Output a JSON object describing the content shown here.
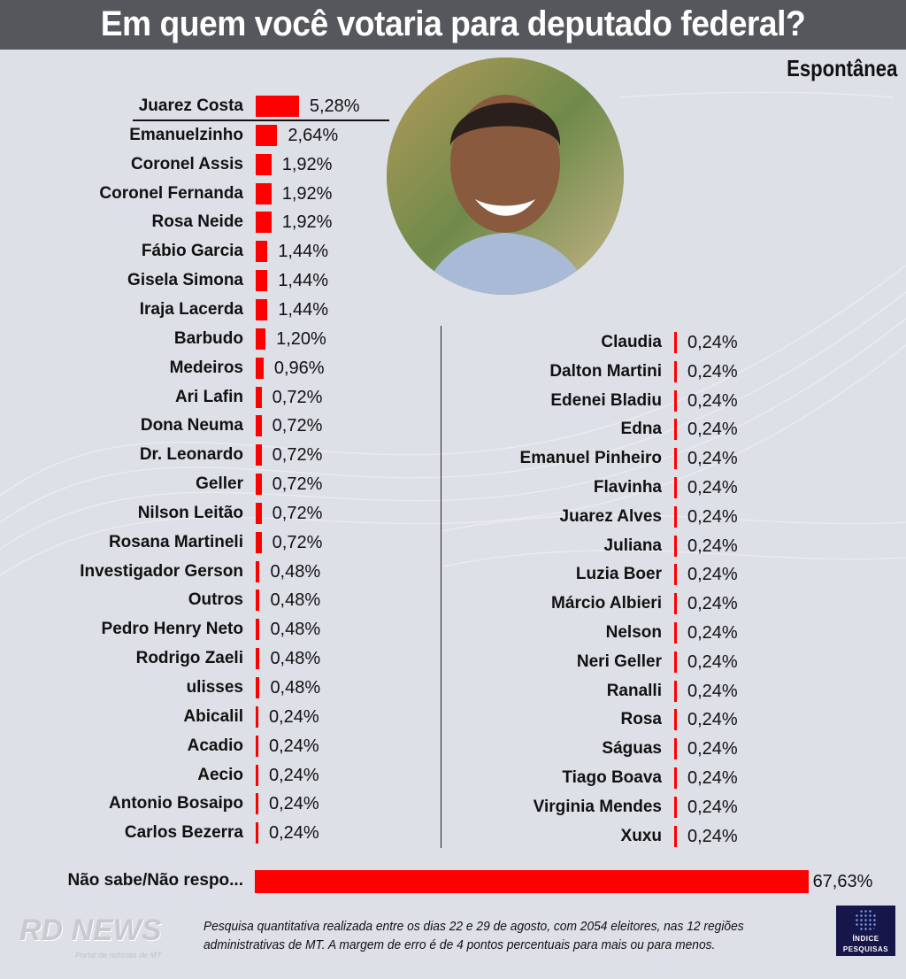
{
  "header": {
    "title": "Em quem você votaria para deputado federal?",
    "subtitle": "Espontânea"
  },
  "colors": {
    "bar": "#ff0000",
    "header_bg": "#55575c",
    "background": "#dde0e7"
  },
  "chart_data": {
    "type": "bar",
    "orientation": "horizontal",
    "title": "Em quem você votaria para deputado federal?",
    "subtitle": "Espontânea",
    "unit": "%",
    "columns": [
      {
        "categories": [
          "Juarez Costa",
          "Emanuelzinho",
          "Coronel Assis",
          "Coronel Fernanda",
          "Rosa Neide",
          "Fábio Garcia",
          "Gisela Simona",
          "Iraja Lacerda",
          "Barbudo",
          "Medeiros",
          "Ari Lafin",
          "Dona Neuma",
          "Dr. Leonardo",
          "Geller",
          "Nilson Leitão",
          "Rosana Martineli",
          "Investigador Gerson",
          "Outros",
          "Pedro Henry Neto",
          "Rodrigo Zaeli",
          "ulisses",
          "Abicalil",
          "Acadio",
          "Aecio",
          "Antonio Bosaipo",
          "Carlos Bezerra"
        ],
        "values": [
          5.28,
          2.64,
          1.92,
          1.92,
          1.92,
          1.44,
          1.44,
          1.44,
          1.2,
          0.96,
          0.72,
          0.72,
          0.72,
          0.72,
          0.72,
          0.72,
          0.48,
          0.48,
          0.48,
          0.48,
          0.48,
          0.24,
          0.24,
          0.24,
          0.24,
          0.24
        ],
        "labels": [
          "5,28%",
          "2,64%",
          "1,92%",
          "1,92%",
          "1,92%",
          "1,44%",
          "1,44%",
          "1,44%",
          "1,20%",
          "0,96%",
          "0,72%",
          "0,72%",
          "0,72%",
          "0,72%",
          "0,72%",
          "0,72%",
          "0,48%",
          "0,48%",
          "0,48%",
          "0,48%",
          "0,48%",
          "0,24%",
          "0,24%",
          "0,24%",
          "0,24%",
          "0,24%"
        ]
      },
      {
        "categories": [
          "Claudia",
          "Dalton Martini",
          "Edenei Bladiu",
          "Edna",
          "Emanuel Pinheiro",
          "Flavinha",
          "Juarez Alves",
          "Juliana",
          "Luzia Boer",
          "Márcio Albieri",
          "Nelson",
          "Neri Geller",
          "Ranalli",
          "Rosa",
          "Ságuas",
          "Tiago Boava",
          "Virginia Mendes",
          "Xuxu"
        ],
        "values": [
          0.24,
          0.24,
          0.24,
          0.24,
          0.24,
          0.24,
          0.24,
          0.24,
          0.24,
          0.24,
          0.24,
          0.24,
          0.24,
          0.24,
          0.24,
          0.24,
          0.24,
          0.24
        ],
        "labels": [
          "0,24%",
          "0,24%",
          "0,24%",
          "0,24%",
          "0,24%",
          "0,24%",
          "0,24%",
          "0,24%",
          "0,24%",
          "0,24%",
          "0,24%",
          "0,24%",
          "0,24%",
          "0,24%",
          "0,24%",
          "0,24%",
          "0,24%",
          "0,24%"
        ]
      }
    ],
    "bottom": {
      "category": "Não sabe/Não respo...",
      "value": 67.63,
      "label": "67,63%"
    }
  },
  "footer": {
    "note_line1": "Pesquisa quantitativa realizada entre os dias 22 e 29 de agosto, com 2054 eleitores, nas 12 regiões",
    "note_line2": "administrativas de MT. A margem de erro é de 4 pontos percentuais para mais ou para menos.",
    "rd_logo": "RD NEWS",
    "rd_tagline": "Portal de notícias de MT",
    "indice_line1": "ÍNDICE",
    "indice_line2": "PESQUISAS"
  }
}
